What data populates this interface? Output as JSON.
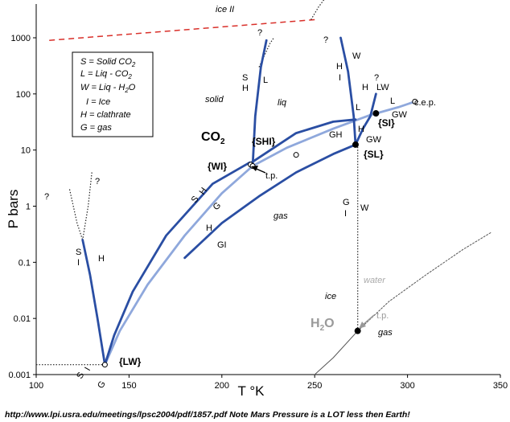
{
  "chart_data": {
    "type": "line",
    "title": "",
    "xlabel": "T °K",
    "ylabel": "P bars",
    "x_range": [
      100,
      350
    ],
    "y_range": [
      0.001,
      10000
    ],
    "y_scale": "log",
    "x_ticks": [
      "100",
      "150",
      "200",
      "250",
      "300",
      "350"
    ],
    "y_ticks": [
      {
        "v": 1000,
        "label": "1000"
      },
      {
        "v": 100,
        "label": "100"
      },
      {
        "v": 10,
        "label": "10"
      },
      {
        "v": 1,
        "label": "1"
      },
      {
        "v": 0.1,
        "label": "0.1"
      },
      {
        "v": 0.01,
        "label": "0.01"
      },
      {
        "v": 0.001,
        "label": "0.001"
      }
    ],
    "grid": false,
    "series": [
      {
        "role": "co2-ice-sublimation",
        "color": "#8fa8dc",
        "x": [
          137,
          145,
          160,
          180,
          200,
          216.6
        ],
        "y": [
          0.0015,
          0.006,
          0.04,
          0.3,
          1.7,
          5.2
        ]
      },
      {
        "role": "co2-clathrate-dissociation",
        "color": "#2a4ea3",
        "x": [
          137,
          142,
          152,
          170,
          195,
          215
        ],
        "y": [
          0.0015,
          0.005,
          0.03,
          0.3,
          2.5,
          6
        ]
      },
      {
        "role": "co2-liquid-vapor",
        "color": "#8fa8dc",
        "x": [
          216.6,
          235,
          260,
          280,
          295,
          304
        ],
        "y": [
          5.2,
          11,
          24,
          42,
          58,
          73
        ]
      },
      {
        "role": "co2-solid-liquid-melting",
        "color": "#2a4ea3",
        "x": [
          216.6,
          218,
          221,
          224
        ],
        "y": [
          5.2,
          40,
          300,
          900
        ]
      },
      {
        "role": "clathrate-gas-hi-branch",
        "color": "#2a4ea3",
        "x": [
          216,
          240,
          260,
          272
        ],
        "y": [
          6,
          20,
          32,
          35
        ]
      },
      {
        "role": "h2o-clathrate-ice-gas",
        "color": "#2a4ea3",
        "x": [
          180,
          200,
          220,
          240,
          260,
          272
        ],
        "y": [
          0.12,
          0.5,
          1.5,
          4,
          8.5,
          12.5
        ]
      },
      {
        "role": "h2o-water-clathrate-upper",
        "color": "#2a4ea3",
        "x": [
          272,
          271,
          268,
          264
        ],
        "y": [
          12.5,
          40,
          250,
          1000
        ]
      },
      {
        "role": "clathrate-liquid-water-L",
        "color": "#2a4ea3",
        "x": [
          272,
          276,
          280,
          283
        ],
        "y": [
          12.5,
          24,
          40,
          100
        ]
      },
      {
        "role": "clathrate-dissociation-low-T",
        "color": "#2a4ea3",
        "x": [
          125,
          129,
          133,
          137
        ],
        "y": [
          0.25,
          0.06,
          0.01,
          0.0015
        ]
      },
      {
        "role": "h2o-liquid-vapor",
        "color": "#555555",
        "x": [
          273.16,
          290,
          310,
          330,
          345
        ],
        "y": [
          0.006,
          0.02,
          0.06,
          0.17,
          0.34
        ]
      },
      {
        "role": "h2o-ice-vapor",
        "color": "#555555",
        "x": [
          250,
          260,
          273.16
        ],
        "y": [
          0.001,
          0.002,
          0.006
        ]
      }
    ],
    "dashed_lines": [
      {
        "role": "ice-ii-boundary",
        "color": "#d9302a",
        "x": [
          107,
          250
        ],
        "y": [
          900,
          2100
        ]
      }
    ],
    "dotted_lines": [
      {
        "role": "h2o-melting-vertical",
        "x": [
          273.16,
          273.16
        ],
        "y": [
          0.006,
          12
        ]
      },
      {
        "role": "co2-sublimation-extension-low",
        "x": [
          100,
          137
        ],
        "y": [
          0.0015,
          0.0015
        ]
      },
      {
        "role": "h2o-ice-ii-upper",
        "x": [
          248,
          252,
          260,
          270,
          272
        ],
        "y": [
          2100,
          3500,
          8000,
          10000,
          10000
        ]
      },
      {
        "role": "co2-melt-extension",
        "x": [
          220,
          226,
          228
        ],
        "y": [
          300,
          800,
          1000
        ]
      },
      {
        "role": "low-T-clathrate-dotted",
        "x": [
          118,
          122,
          125
        ],
        "y": [
          2,
          0.5,
          0.25
        ]
      },
      {
        "role": "low-T-extension-2",
        "x": [
          130,
          128,
          125
        ],
        "y": [
          4,
          1,
          0.25
        ]
      }
    ],
    "points": [
      {
        "label": "{LW}",
        "x": 137,
        "y": 0.0015
      },
      {
        "label": "{WI}",
        "x": 215.5,
        "y": 5.5
      },
      {
        "label": "{SHI}",
        "x": 240,
        "y": 8.2
      },
      {
        "label": "{SI}",
        "x": 283,
        "y": 45
      },
      {
        "label": "{SL}",
        "x": 272,
        "y": 12.5
      },
      {
        "label": "t.p.",
        "x": 216.6,
        "y": 5.2
      },
      {
        "label": "H2O t.p.",
        "x": 273.16,
        "y": 0.006
      },
      {
        "label": "c.e.p.",
        "x": 304,
        "y": 73
      }
    ],
    "annotations": [
      {
        "text": "ice II",
        "x": 240,
        "y": 3500
      },
      {
        "text": "solid",
        "x": 194,
        "y": 130
      },
      {
        "text": "liq",
        "x": 232,
        "y": 120
      },
      {
        "text": "gas",
        "x": 231,
        "y": 0.75
      },
      {
        "text": "ice",
        "x": 262,
        "y": 0.012
      },
      {
        "text": "water",
        "x": 290,
        "y": 0.06
      },
      {
        "text": "gas",
        "x": 287,
        "y": 0.003
      },
      {
        "text": "CO2",
        "x": 198,
        "y": 15
      },
      {
        "text": "H2O",
        "x": 250,
        "y": 0.009
      },
      {
        "text": "?",
        "x": 222,
        "y": 1400
      },
      {
        "text": "?",
        "x": 264,
        "y": 1100
      },
      {
        "text": "?",
        "x": 284,
        "y": 190
      },
      {
        "text": "?",
        "x": 106,
        "y": 1.4
      },
      {
        "text": "?",
        "x": 133,
        "y": 3
      }
    ],
    "legend": {
      "position": "top-left",
      "entries": [
        "S = Solid CO2",
        "L = Liq - CO2",
        "W = Liq - H2O",
        "I = Ice",
        "H = clathrate",
        "G = gas"
      ]
    }
  },
  "labels": {
    "legend_S": "S = Solid CO",
    "legend_S_sub": "2",
    "legend_L": "L =  Liq - CO",
    "legend_L_sub": "2",
    "legend_W": "W = Liq - H",
    "legend_W_sub": "2",
    "legend_W_end": "O",
    "legend_I": "I = Ice",
    "legend_H": "H = clathrate",
    "legend_G": "G = gas",
    "co2": "CO",
    "co2_sub": "2",
    "h2o_H": "H",
    "h2o_sub": "2",
    "h2o_O": "O",
    "ice_ii": "ice II",
    "solid": "solid",
    "liq": "liq",
    "gas_co2": "gas",
    "ice": "ice",
    "water": "water",
    "gas_h2o": "gas",
    "tp1": "t.p.",
    "tp2": "t.p.",
    "cep": "c.e.p.",
    "LW": "{LW}",
    "WI": "{WI}",
    "SHI": "{SHI}",
    "SI": "{SI}",
    "SL": "{SL}",
    "q": "?",
    "footer": "http://www.lpi.usra.edu/meetings/lpsc2004/pdf/1857.pdf  Note Mars Pressure is a LOT less then Earth!"
  }
}
